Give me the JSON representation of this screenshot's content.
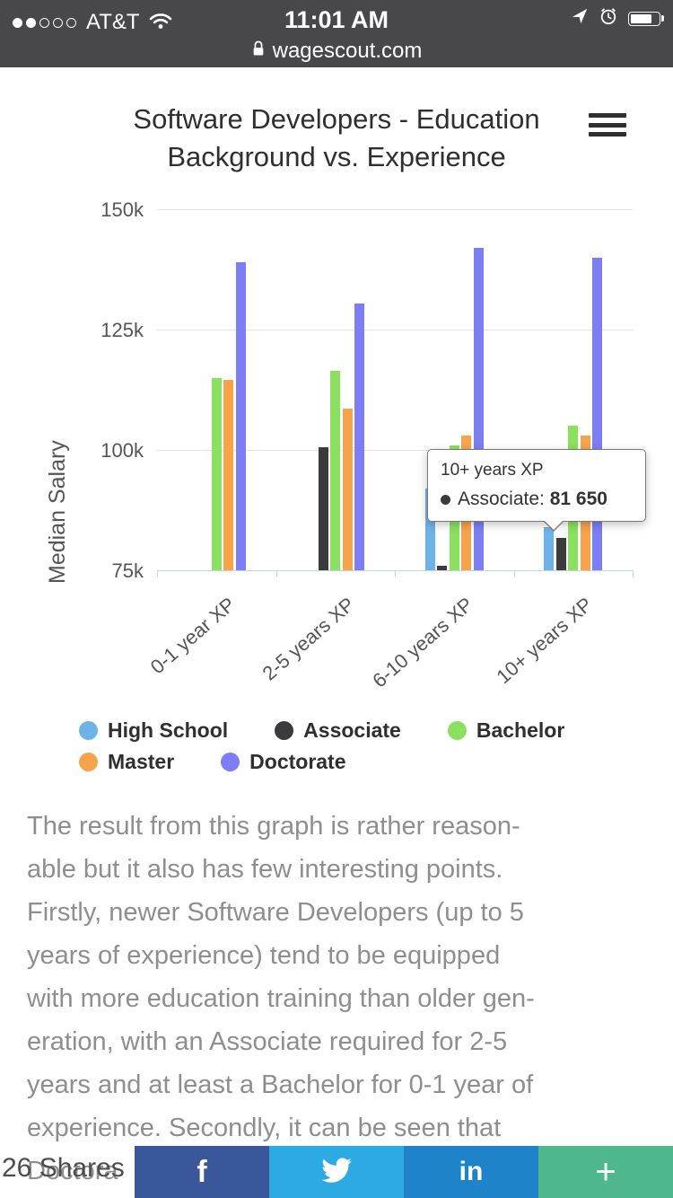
{
  "status_bar": {
    "carrier": "AT&T",
    "time": "11:01 AM",
    "url": "wagescout.com"
  },
  "header": {
    "title_line1": "Software Developers - Education",
    "title_line2": "Background vs. Experience"
  },
  "chart_data": {
    "type": "bar",
    "title": "Software Developers - Education Background vs. Experience",
    "xlabel": "",
    "ylabel": "Median Salary",
    "ylim": [
      75000,
      150000
    ],
    "grid": true,
    "legend_position": "bottom",
    "y_ticks": [
      {
        "value": 75000,
        "label": "75k"
      },
      {
        "value": 100000,
        "label": "100k"
      },
      {
        "value": 125000,
        "label": "125k"
      },
      {
        "value": 150000,
        "label": "150k"
      }
    ],
    "categories": [
      "0-1 year XP",
      "2-5 years XP",
      "6-10 years XP",
      "10+ years XP"
    ],
    "series": [
      {
        "name": "High School",
        "color": "#6FB2E8",
        "values": [
          null,
          null,
          92000,
          84000
        ]
      },
      {
        "name": "Associate",
        "color": "#3B3B3D",
        "values": [
          null,
          100500,
          76000,
          81650
        ]
      },
      {
        "name": "Bachelor",
        "color": "#8CE05F",
        "values": [
          115000,
          116500,
          101000,
          105000
        ]
      },
      {
        "name": "Master",
        "color": "#F6A44C",
        "values": [
          114500,
          108500,
          103000,
          103000
        ]
      },
      {
        "name": "Doctorate",
        "color": "#7D7EF4",
        "values": [
          139000,
          130500,
          142000,
          140000
        ]
      }
    ],
    "tooltip": {
      "title": "10+ years XP",
      "series_label": "Associate:",
      "value": "81 650",
      "dot_color": "#3B3B3D"
    }
  },
  "article": {
    "lines": [
      "The result from this graph is rather reason-",
      "able but it also has few interesting points.",
      "Firstly, newer Software Developers (up to 5",
      "years of experience) tend to be equipped",
      "with more education training than older gen-",
      "eration, with an Associate required for 2-5",
      "years and at least a Bachelor for 0-1 year of",
      "experience. Secondly, it can be seen that",
      "Doctora"
    ]
  },
  "share": {
    "count_label": "26 Shares",
    "buttons": [
      {
        "name": "facebook",
        "label": "f",
        "color": "#3A579A"
      },
      {
        "name": "twitter",
        "label": "",
        "color": "#2CAAE1"
      },
      {
        "name": "linkedin",
        "label": "in",
        "color": "#1E83C9"
      },
      {
        "name": "plus",
        "label": "+",
        "color": "#4FB78D"
      }
    ]
  }
}
